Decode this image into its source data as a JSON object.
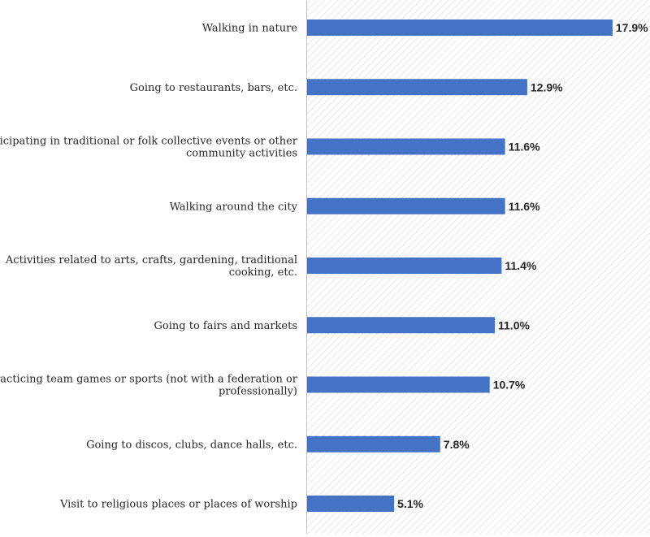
{
  "chart_data": {
    "type": "bar",
    "orientation": "horizontal",
    "title": "",
    "xlabel": "",
    "ylabel": "",
    "categories": [
      "Walking in nature",
      "Going to restaurants, bars, etc.",
      "Participating in traditional or folk collective events or other community activities",
      "Walking around the city",
      "Activities related to arts, crafts, gardening, traditional cooking, etc.",
      "Going to fairs and markets",
      "Practicing team games or sports (not with a federation or professionally)",
      "Going to discos, clubs, dance halls, etc.",
      "Visit to religious places or places of worship"
    ],
    "category_lines": [
      [
        "Walking in nature"
      ],
      [
        "Going to restaurants, bars, etc."
      ],
      [
        "Participating in traditional or folk collective events or other",
        "community activities"
      ],
      [
        "Walking around the city"
      ],
      [
        "Activities related to arts, crafts, gardening, traditional",
        "cooking, etc."
      ],
      [
        "Going to fairs and markets"
      ],
      [
        "Practicing team games or sports (not with a federation or",
        "professionally)"
      ],
      [
        "Going to discos, clubs, dance halls, etc."
      ],
      [
        "Visit to religious places or places of worship"
      ]
    ],
    "values": [
      17.9,
      12.9,
      11.6,
      11.6,
      11.4,
      11.0,
      10.7,
      7.8,
      5.1
    ],
    "value_labels": [
      "17.9%",
      "12.9%",
      "11.6%",
      "11.6%",
      "11.4%",
      "11.0%",
      "10.7%",
      "7.8%",
      "5.1%"
    ],
    "xlim": [
      0,
      19.5
    ],
    "grid": false,
    "legend": "none",
    "bar_color": "#4472C4",
    "plot_background": "hatched"
  }
}
